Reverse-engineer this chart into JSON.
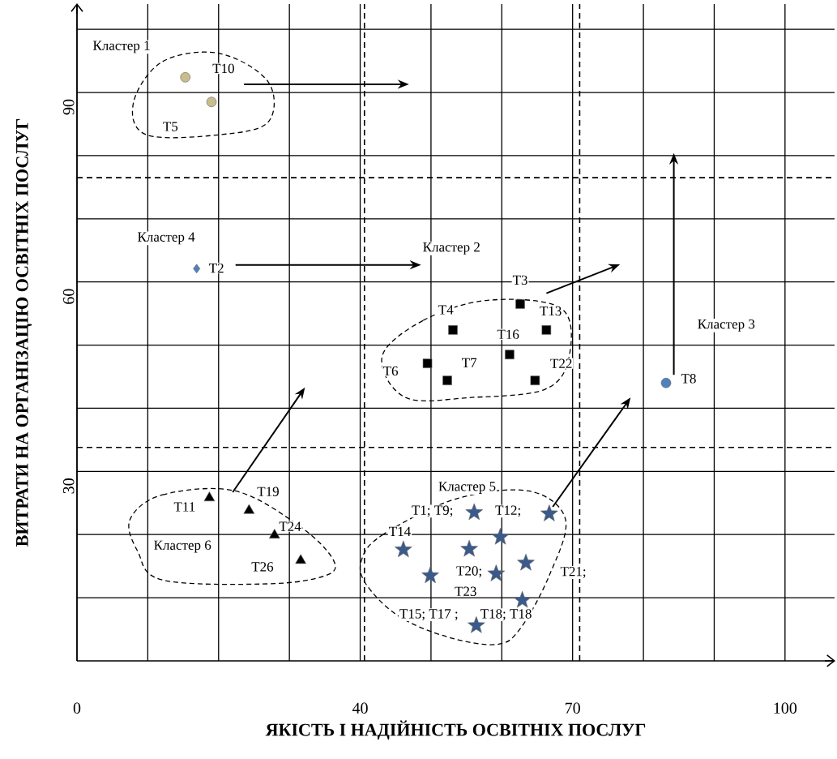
{
  "chart_data": {
    "type": "scatter",
    "xlabel": "ЯКІСТЬ І НАДІЙНІСТЬ ОСВІТНІХ ПОСЛУГ",
    "ylabel": "ВИТРАТИ НА ОРГАНІЗАЦІЮ ОСВІТНІХ ПОСЛУГ",
    "xlim": [
      0,
      107
    ],
    "ylim": [
      0,
      104
    ],
    "xticks": [
      0,
      {
        "value": 10,
        "label": null
      },
      {
        "value": 20,
        "label": null
      },
      {
        "value": 30,
        "label": null
      },
      40,
      {
        "value": 50,
        "label": null
      },
      {
        "value": 60,
        "label": null
      },
      70,
      {
        "value": 80,
        "label": null
      },
      {
        "value": 90,
        "label": null
      },
      100
    ],
    "yticks": [
      {
        "value": 10,
        "label": null
      },
      {
        "value": 20,
        "label": null
      },
      30,
      {
        "value": 40,
        "label": null
      },
      {
        "value": 50,
        "label": null
      },
      60,
      {
        "value": 70,
        "label": null
      },
      {
        "value": 80,
        "label": null
      },
      90,
      {
        "value": 100,
        "label": null
      }
    ],
    "grid": true,
    "series": [
      {
        "marker": "circle",
        "color": "#c9bc8e",
        "x": [
          15.3,
          19.0
        ],
        "values": [
          92.4,
          88.5
        ]
      },
      {
        "marker": "diamond",
        "color": "#4f81bd",
        "x": [
          16.9
        ],
        "values": [
          62.1
        ]
      },
      {
        "marker": "square",
        "color": "#000000",
        "x": [
          62.6,
          53.1,
          66.3,
          61.1,
          49.5,
          52.3,
          64.7
        ],
        "values": [
          56.5,
          52.4,
          52.4,
          48.5,
          47.1,
          44.4,
          44.4
        ]
      },
      {
        "marker": "circle",
        "color": "#4f81bd",
        "x": [
          83.2
        ],
        "values": [
          44.0
        ]
      },
      {
        "marker": "triangle",
        "color": "#000000",
        "x": [
          18.7,
          24.3,
          27.9,
          31.6
        ],
        "values": [
          25.8,
          23.8,
          19.9,
          15.9
        ]
      },
      {
        "marker": "star",
        "color": "#3a5a8c",
        "x": [
          56.1,
          66.7,
          59.8,
          46.1,
          55.4,
          63.4,
          49.9,
          59.2,
          62.9,
          56.4
        ],
        "values": [
          23.5,
          23.3,
          19.6,
          17.6,
          17.7,
          15.5,
          13.5,
          13.8,
          9.6,
          5.6
        ]
      }
    ],
    "ref_lines": [
      {
        "axis": "x",
        "value": 40.6,
        "color": "#000000",
        "line_style": "dashed"
      },
      {
        "axis": "x",
        "value": 71,
        "color": "#000000",
        "line_style": "dashed"
      },
      {
        "axis": "y",
        "value": 76.5,
        "color": "#000000",
        "line_style": "dashed"
      },
      {
        "axis": "y",
        "value": 33.8,
        "color": "#000000",
        "line_style": "dashed"
      }
    ],
    "annotations": [
      "Кластер 1",
      "T10",
      "T5",
      "Кластер 4",
      "T2",
      "Кластер 2",
      "T3",
      "T4",
      "T13",
      "T16",
      "T6",
      "T7",
      "T22",
      "Кластер 3",
      "T8",
      "T11",
      "T19",
      "T24",
      "T26",
      "Кластер 6",
      "Кластер 5",
      "T1; T9;",
      "T12;",
      "T14",
      "T20;",
      "T21;",
      "T23",
      "T15; T17 ;",
      "T18; T18"
    ]
  }
}
